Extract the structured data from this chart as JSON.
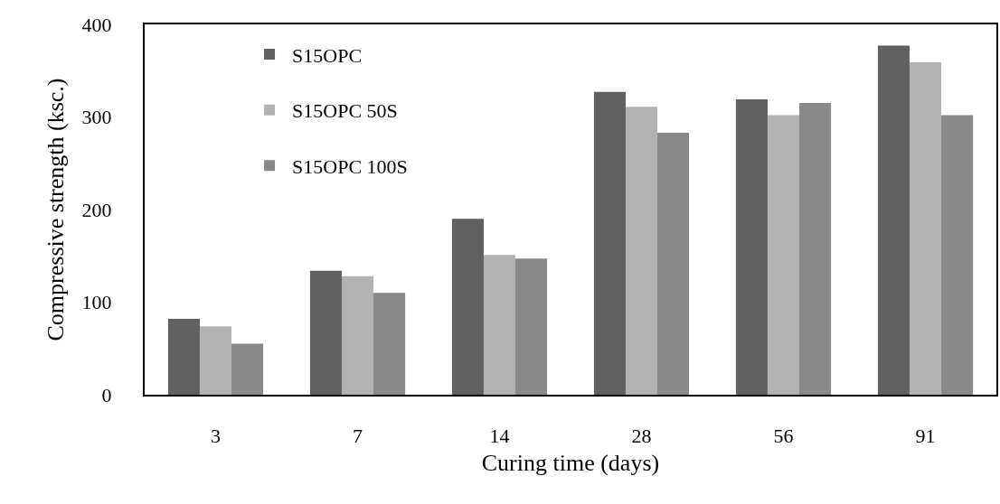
{
  "chart_data": {
    "type": "bar",
    "xlabel": "Curing time (days)",
    "ylabel": "Compressive strength (ksc.)",
    "categories": [
      "3",
      "7",
      "14",
      "28",
      "56",
      "91"
    ],
    "series": [
      {
        "name": "S15OPC",
        "color": "#606060",
        "values": [
          82,
          134,
          190,
          327,
          319,
          377
        ]
      },
      {
        "name": "S15OPC 50S",
        "color": "#b2b2b2",
        "values": [
          74,
          128,
          151,
          311,
          302,
          359
        ]
      },
      {
        "name": "S15OPC 100S",
        "color": "#898989",
        "values": [
          55,
          110,
          147,
          283,
          315,
          302
        ]
      }
    ],
    "ylim": [
      0,
      400
    ],
    "yticks": [
      0,
      100,
      200,
      300,
      400
    ],
    "legend": "top left"
  }
}
